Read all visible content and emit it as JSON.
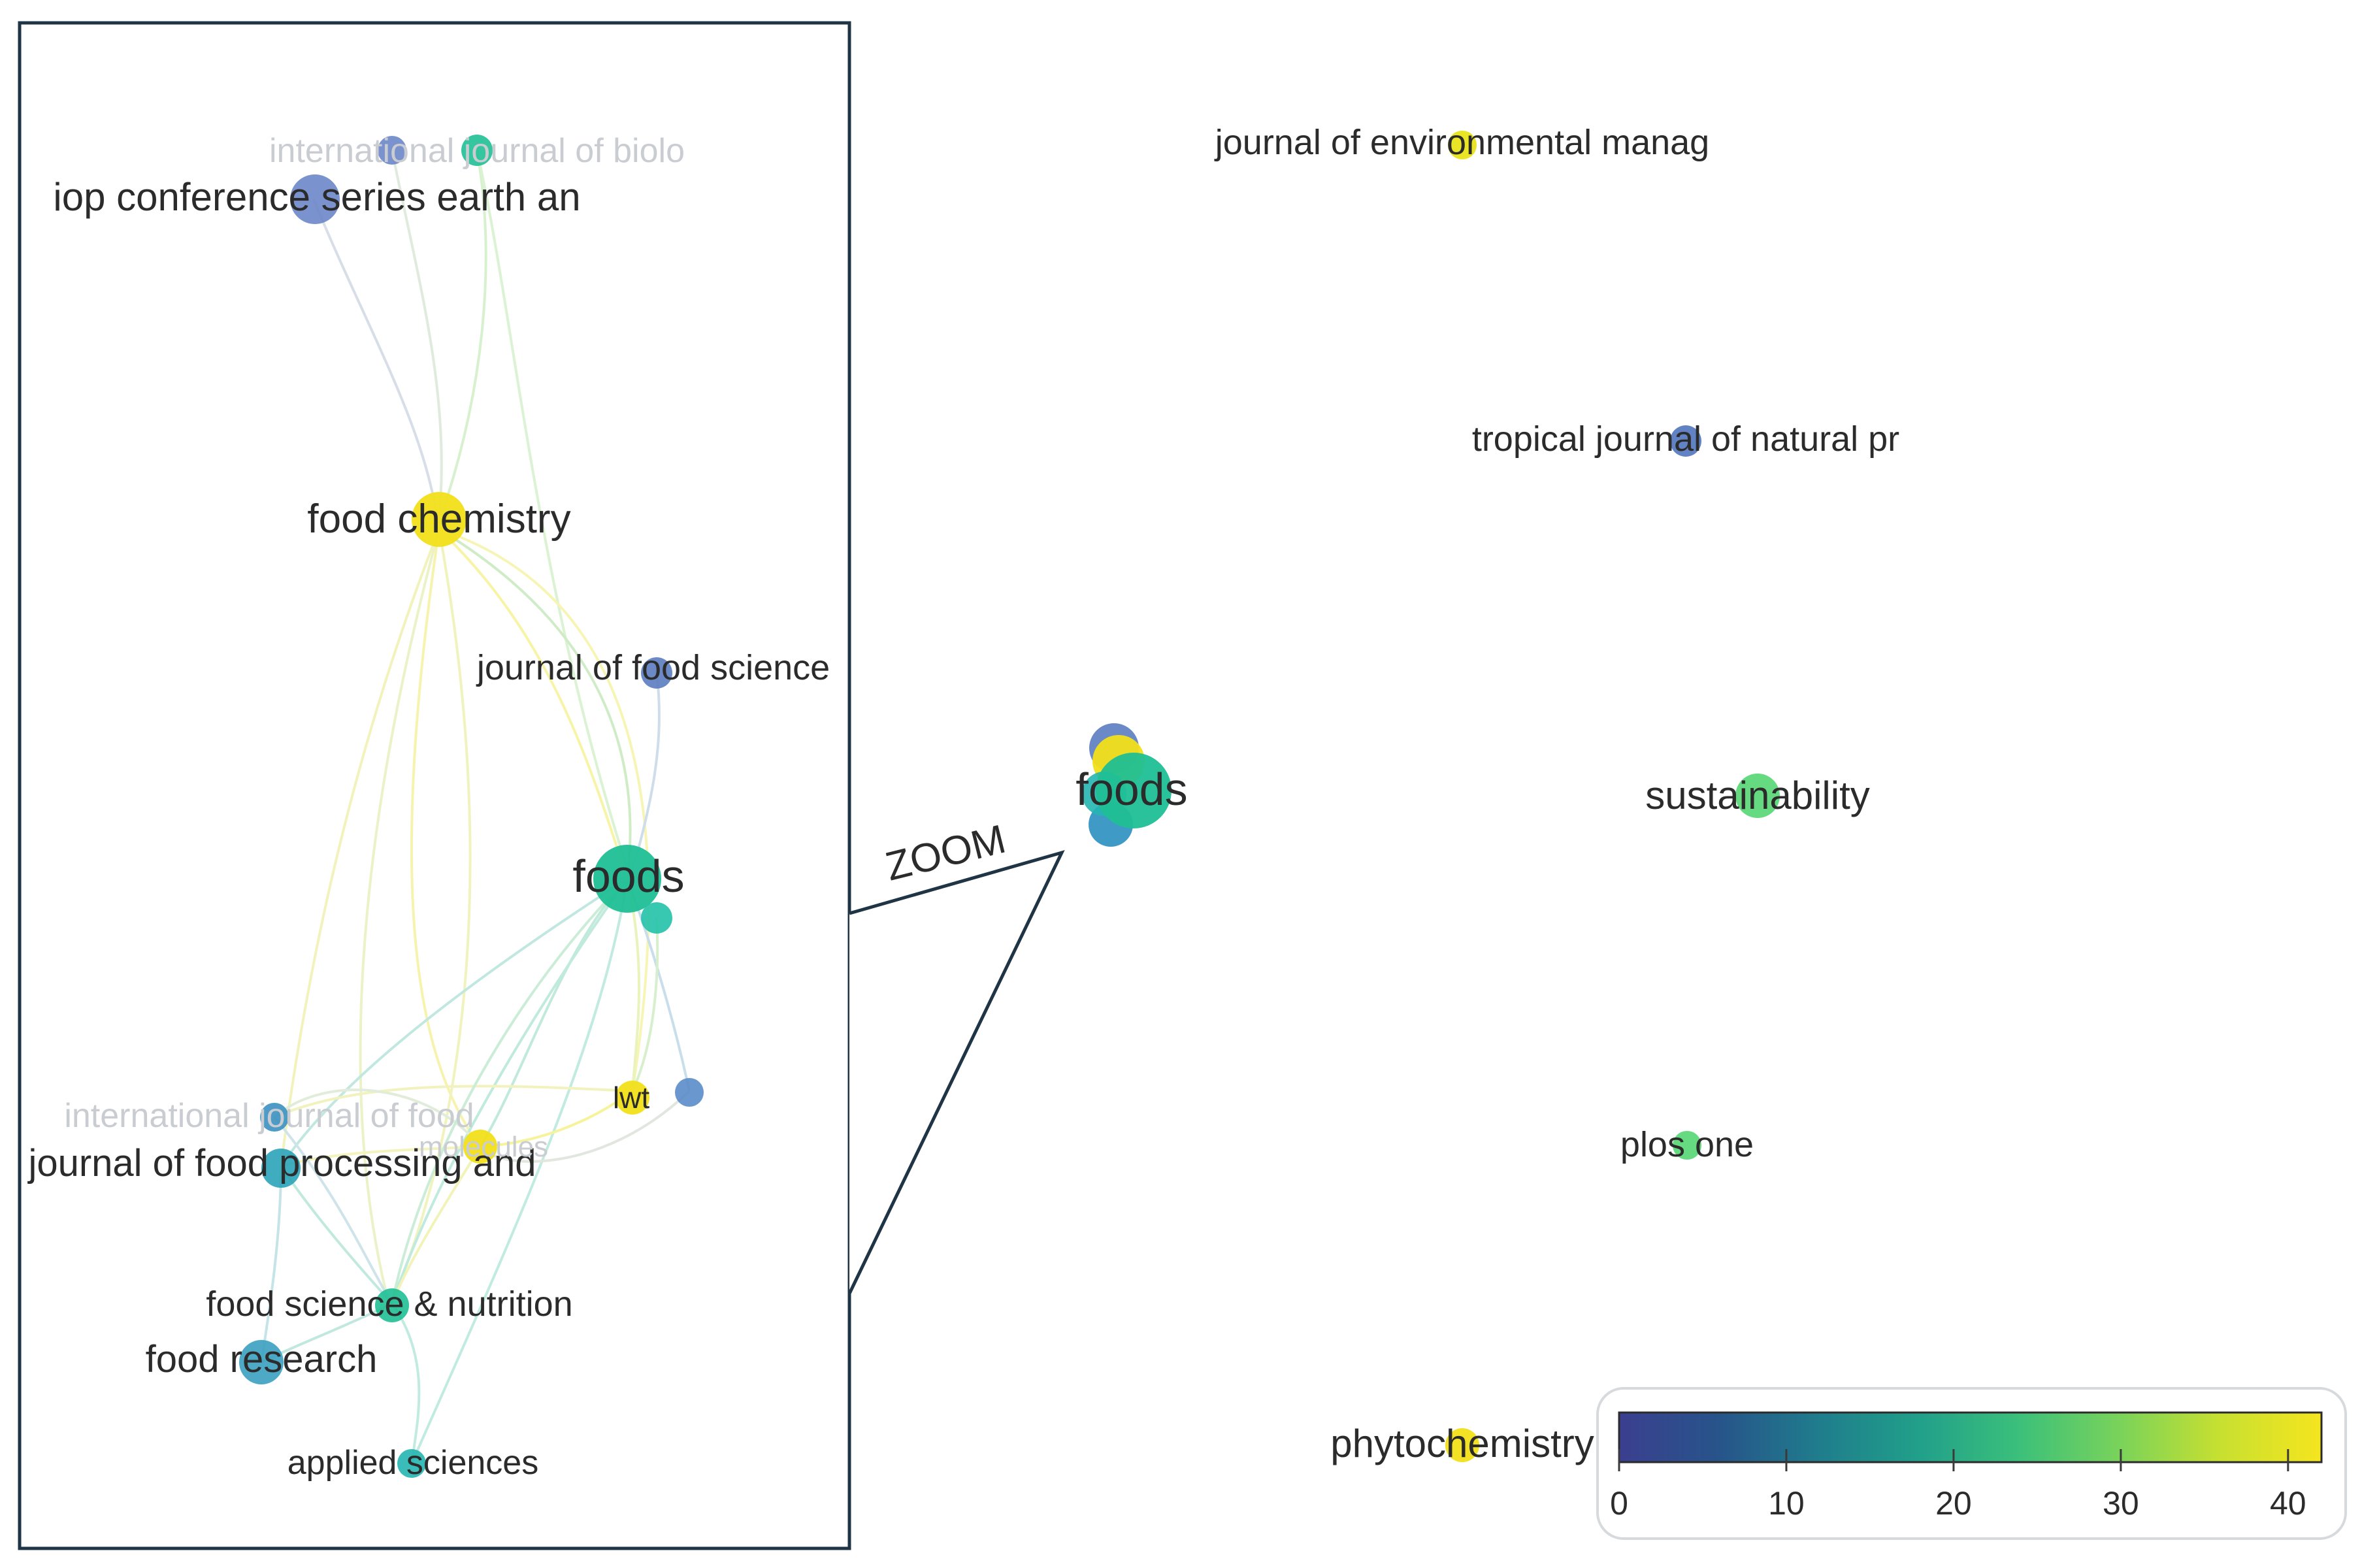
{
  "zoom_label": "ZOOM",
  "left_panel": {
    "nodes": [
      {
        "id": "intl-biolo",
        "label": "international journal of biolo",
        "faint": true,
        "color": "#3aa7b8",
        "citations": 15
      },
      {
        "id": "iop",
        "label": "iop conference series earth an",
        "faint": false,
        "color": "#6b86c8",
        "citations": 5
      },
      {
        "id": "food-chemistry",
        "label": "food chemistry",
        "faint": false,
        "color": "#f2df1a",
        "citations": 41
      },
      {
        "id": "journal-food-science",
        "label": "journal of food science",
        "faint": false,
        "color": "#5a7cc0",
        "citations": 4
      },
      {
        "id": "foods",
        "label": "foods",
        "faint": false,
        "color": "#1fbf95",
        "citations": 25
      },
      {
        "id": "lwt",
        "label": "lwt",
        "faint": false,
        "color": "#f2df1a",
        "citations": 40
      },
      {
        "id": "intl-food",
        "label": "international journal of food",
        "faint": true,
        "color": "#3a90c0",
        "citations": 10
      },
      {
        "id": "jfpp",
        "label": "journal of food processing and",
        "faint": false,
        "color": "#2aa3b8",
        "citations": 15
      },
      {
        "id": "molecules",
        "label": "molecules",
        "faint": true,
        "color": "#f2df1a",
        "citations": 40
      },
      {
        "id": "fsn",
        "label": "food science & nutrition",
        "faint": false,
        "color": "#1fbf95",
        "citations": 24
      },
      {
        "id": "food-research",
        "label": "food research",
        "faint": false,
        "color": "#3aa0c0",
        "citations": 12
      },
      {
        "id": "applied-sciences",
        "label": "applied sciences",
        "faint": false,
        "color": "#25b5b0",
        "citations": 19
      }
    ]
  },
  "right_panel": {
    "nodes": [
      {
        "id": "jem",
        "label": "journal of environmental manag",
        "color": "#e8e41a",
        "citations": 40
      },
      {
        "id": "tjnp",
        "label": "tropical journal of natural pr",
        "color": "#5a7cc0",
        "citations": 5
      },
      {
        "id": "foods-cluster",
        "label": "foods",
        "color": "#1fbf95",
        "citations": 25
      },
      {
        "id": "sustainability",
        "label": "sustainability",
        "color": "#5ed87a",
        "citations": 30
      },
      {
        "id": "plos-one",
        "label": "plos one",
        "color": "#5ed87a",
        "citations": 30
      },
      {
        "id": "phytochemistry",
        "label": "phytochemistry",
        "color": "#f2df1a",
        "citations": 41
      }
    ]
  },
  "colorbar": {
    "min": 0,
    "max": 42,
    "ticks": [
      "0",
      "10",
      "20",
      "30",
      "40"
    ],
    "colors": [
      "#3b3f8f",
      "#27548a",
      "#1f7d8c",
      "#21a08a",
      "#3cc07a",
      "#7ad35a",
      "#c8e030",
      "#f5e51e"
    ]
  }
}
